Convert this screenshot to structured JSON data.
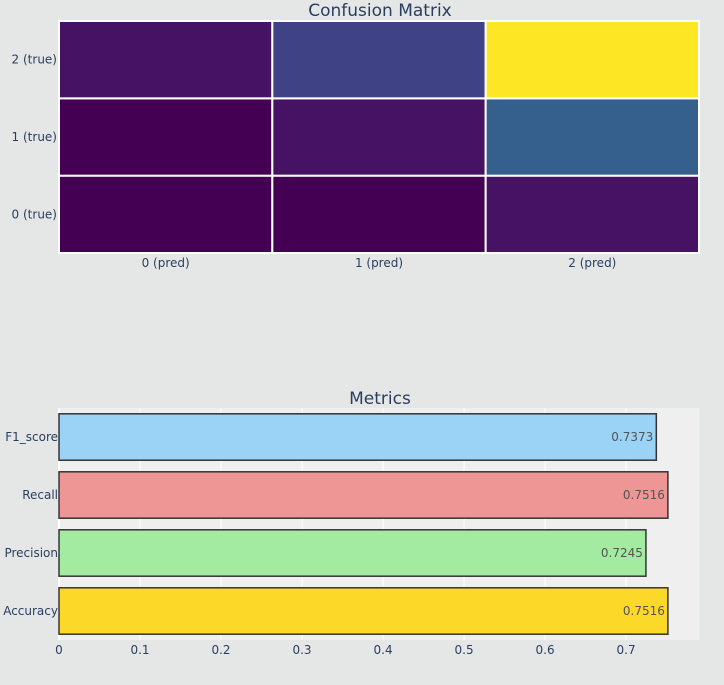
{
  "chart_data": [
    {
      "type": "heatmap",
      "title": "Confusion Matrix",
      "x": [
        "0 (pred)",
        "1 (pred)",
        "2 (pred)"
      ],
      "y": [
        "0 (true)",
        "1 (true)",
        "2 (true)"
      ],
      "z": [
        [
          0.0,
          0.0,
          0.05
        ],
        [
          0.0,
          0.05,
          0.3
        ],
        [
          0.05,
          0.2,
          1.0
        ]
      ],
      "colorscale": "Viridis",
      "colorscale_stops": [
        "#440154",
        "#482878",
        "#3e4989",
        "#31688e",
        "#26828e",
        "#1f9e89",
        "#35b779",
        "#6ece58",
        "#b5de2b",
        "#fde725"
      ]
    },
    {
      "type": "bar",
      "orientation": "horizontal",
      "title": "Metrics",
      "categories": [
        "Accuracy",
        "Precision",
        "Recall",
        "F1_score"
      ],
      "values": [
        0.7516,
        0.7245,
        0.7516,
        0.7373
      ],
      "value_labels": [
        "0.7516",
        "0.7245",
        "0.7516",
        "0.7373"
      ],
      "colors": [
        "#fcd929",
        "#a3eba0",
        "#ee9595",
        "#9ad3f5"
      ],
      "xlim": [
        0,
        0.79
      ],
      "xticks": [
        0,
        0.1,
        0.2,
        0.3,
        0.4,
        0.5,
        0.6,
        0.7
      ],
      "xtick_labels": [
        "0",
        "0.1",
        "0.2",
        "0.3",
        "0.4",
        "0.5",
        "0.6",
        "0.7"
      ],
      "grid": true
    }
  ]
}
